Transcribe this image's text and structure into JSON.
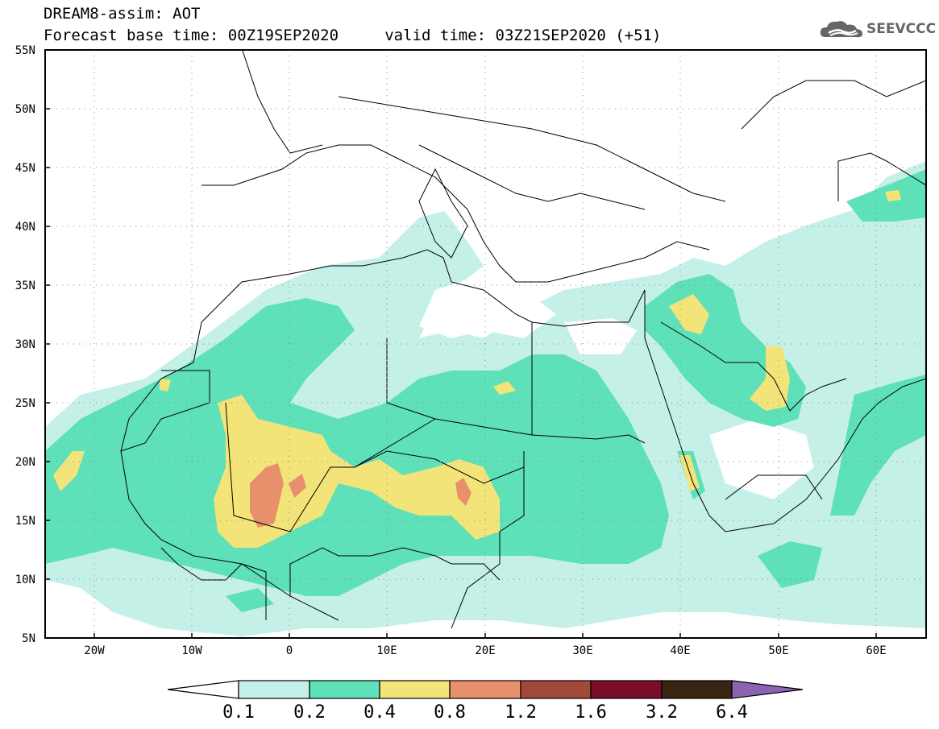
{
  "header": {
    "title_line1": "DREAM8-assim: AOT",
    "title_line2": "Forecast base time: 00Z19SEP2020     valid time: 03Z21SEP2020 (+51)"
  },
  "logo": {
    "text": "SEEVCCC",
    "icon": "cloud-icon"
  },
  "map": {
    "lon_labels": [
      "20W",
      "10W",
      "0",
      "10E",
      "20E",
      "30E",
      "40E",
      "50E",
      "60E"
    ],
    "lat_labels": [
      "55N",
      "50N",
      "45N",
      "40N",
      "35N",
      "30N",
      "25N",
      "20N",
      "15N",
      "10N",
      "5N"
    ],
    "grid": "dotted"
  },
  "colorbar": {
    "labels": [
      "0.1",
      "0.2",
      "0.4",
      "0.8",
      "1.2",
      "1.6",
      "3.2",
      "6.4"
    ],
    "colors": [
      "#ffffff",
      "#c4f0e8",
      "#5ee0b8",
      "#f3e47a",
      "#e8906c",
      "#a24a3a",
      "#7a0c2c",
      "#3a2412",
      "#8c63b0"
    ]
  }
}
